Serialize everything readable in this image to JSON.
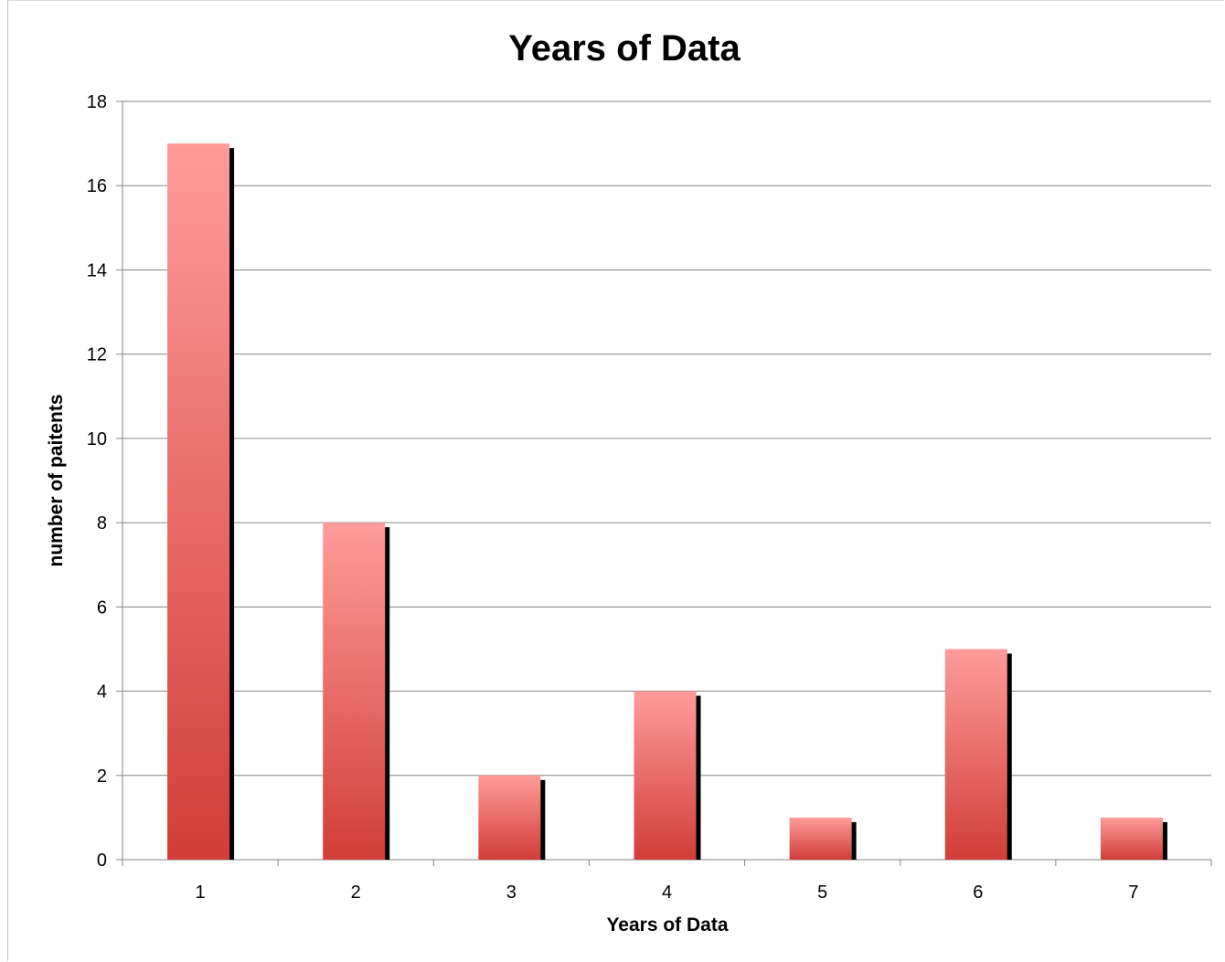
{
  "chart_data": {
    "type": "bar",
    "title": "Years of Data",
    "xlabel": "Years of Data",
    "ylabel": "number of paitents",
    "categories": [
      "1",
      "2",
      "3",
      "4",
      "5",
      "6",
      "7"
    ],
    "values": [
      17,
      8,
      2,
      4,
      1,
      5,
      1
    ],
    "ylim": [
      0,
      18
    ],
    "yticks": [
      0,
      2,
      4,
      6,
      8,
      10,
      12,
      14,
      16,
      18
    ],
    "grid": true,
    "legend": "none",
    "colors": {
      "bar_top": "#ff9c9a",
      "bar_bottom": "#d13d38",
      "shadow": "#000000",
      "grid": "#868686"
    }
  }
}
